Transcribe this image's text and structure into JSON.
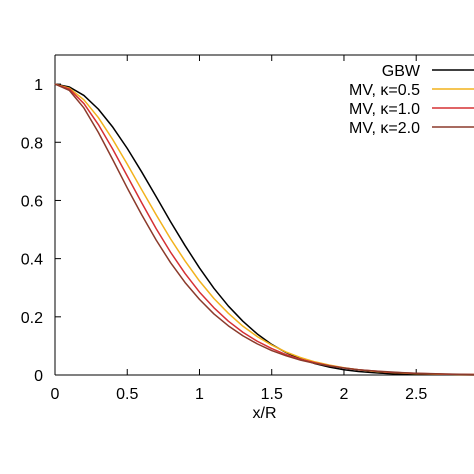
{
  "chart_data": {
    "type": "line",
    "title": "",
    "xlabel": "x/R",
    "ylabel": "",
    "xlim": [
      0,
      2.9
    ],
    "ylim": [
      0,
      1.1
    ],
    "xticks": [
      0,
      0.5,
      1,
      1.5,
      2,
      2.5
    ],
    "xtick_labels": [
      "0",
      "0.5",
      "1",
      "1.5",
      "2",
      "2.5"
    ],
    "yticks": [
      0,
      0.2,
      0.4,
      0.6,
      0.8,
      1
    ],
    "ytick_labels": [
      "0",
      "0.2",
      "0.4",
      "0.6",
      "0.8",
      "1"
    ],
    "grid": false,
    "legend": "top-right",
    "x": [
      0,
      0.1,
      0.2,
      0.3,
      0.4,
      0.5,
      0.6,
      0.7,
      0.8,
      0.9,
      1.0,
      1.1,
      1.2,
      1.3,
      1.4,
      1.5,
      1.6,
      1.7,
      1.8,
      1.9,
      2.0,
      2.1,
      2.2,
      2.3,
      2.4,
      2.5,
      2.6,
      2.7,
      2.8,
      2.9
    ],
    "series": [
      {
        "name": "GBW",
        "color": "#000000",
        "values": [
          1.0,
          0.99,
          0.961,
          0.914,
          0.852,
          0.779,
          0.698,
          0.613,
          0.527,
          0.445,
          0.368,
          0.298,
          0.237,
          0.185,
          0.141,
          0.105,
          0.077,
          0.056,
          0.039,
          0.027,
          0.018,
          0.012,
          0.008,
          0.005,
          0.003,
          0.002,
          0.0012,
          0.0007,
          0.0004,
          0.0002
        ]
      },
      {
        "name": "MV, κ=0.5",
        "color": "#f2b21c",
        "values": [
          1.0,
          0.986,
          0.946,
          0.885,
          0.809,
          0.725,
          0.637,
          0.551,
          0.468,
          0.392,
          0.323,
          0.263,
          0.212,
          0.168,
          0.132,
          0.103,
          0.079,
          0.06,
          0.045,
          0.034,
          0.025,
          0.018,
          0.013,
          0.0095,
          0.0068,
          0.0048,
          0.0034,
          0.0024,
          0.0016,
          0.0011
        ]
      },
      {
        "name": "MV, κ=1.0",
        "color": "#d63034",
        "values": [
          1.0,
          0.983,
          0.933,
          0.861,
          0.776,
          0.684,
          0.592,
          0.503,
          0.422,
          0.349,
          0.285,
          0.231,
          0.185,
          0.147,
          0.116,
          0.091,
          0.07,
          0.054,
          0.042,
          0.032,
          0.024,
          0.018,
          0.014,
          0.01,
          0.0077,
          0.0057,
          0.0042,
          0.0031,
          0.0022,
          0.0016
        ]
      },
      {
        "name": "MV, κ=2.0",
        "color": "#8b3a2b",
        "values": [
          1.0,
          0.978,
          0.918,
          0.834,
          0.74,
          0.643,
          0.551,
          0.464,
          0.386,
          0.318,
          0.26,
          0.21,
          0.169,
          0.135,
          0.107,
          0.084,
          0.066,
          0.051,
          0.04,
          0.031,
          0.024,
          0.018,
          0.014,
          0.011,
          0.008,
          0.006,
          0.0046,
          0.0035,
          0.0026,
          0.0019
        ]
      }
    ]
  }
}
